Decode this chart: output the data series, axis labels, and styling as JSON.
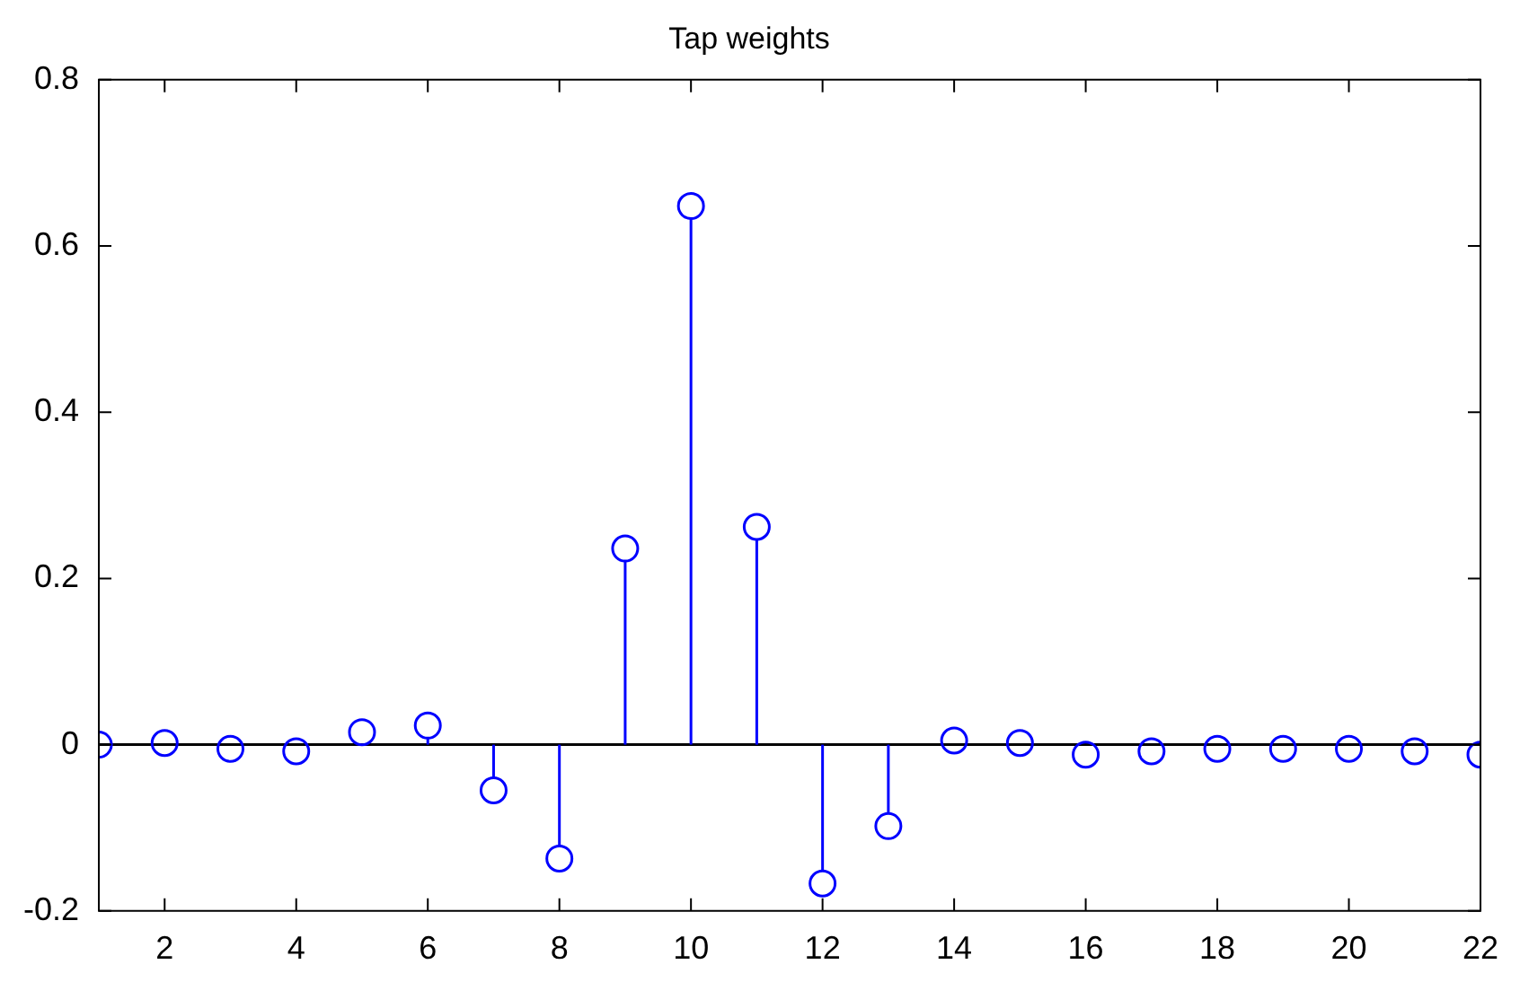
{
  "chart_data": {
    "type": "lollipop",
    "title": "Tap weights",
    "x": [
      1,
      2,
      3,
      4,
      5,
      6,
      7,
      8,
      9,
      10,
      11,
      12,
      13,
      14,
      15,
      16,
      17,
      18,
      19,
      20,
      21,
      22
    ],
    "values": [
      0,
      0.002,
      -0.005,
      -0.008,
      0.015,
      0.023,
      -0.055,
      -0.137,
      0.236,
      0.648,
      0.262,
      -0.167,
      -0.098,
      0.005,
      0.002,
      -0.012,
      -0.008,
      -0.005,
      -0.005,
      -0.005,
      -0.008,
      -0.012
    ],
    "color": "#0000ff",
    "marker": "circle",
    "xlim": [
      1,
      22
    ],
    "xticks": [
      2,
      4,
      6,
      8,
      10,
      12,
      14,
      16,
      18,
      20,
      22
    ],
    "ylim": [
      -0.2,
      0.8
    ],
    "yticks": [
      -0.2,
      0,
      0.2,
      0.4,
      0.6,
      0.8
    ],
    "ref_lines": [
      {
        "axis": "y",
        "value": 0,
        "color": "#000000"
      }
    ]
  }
}
